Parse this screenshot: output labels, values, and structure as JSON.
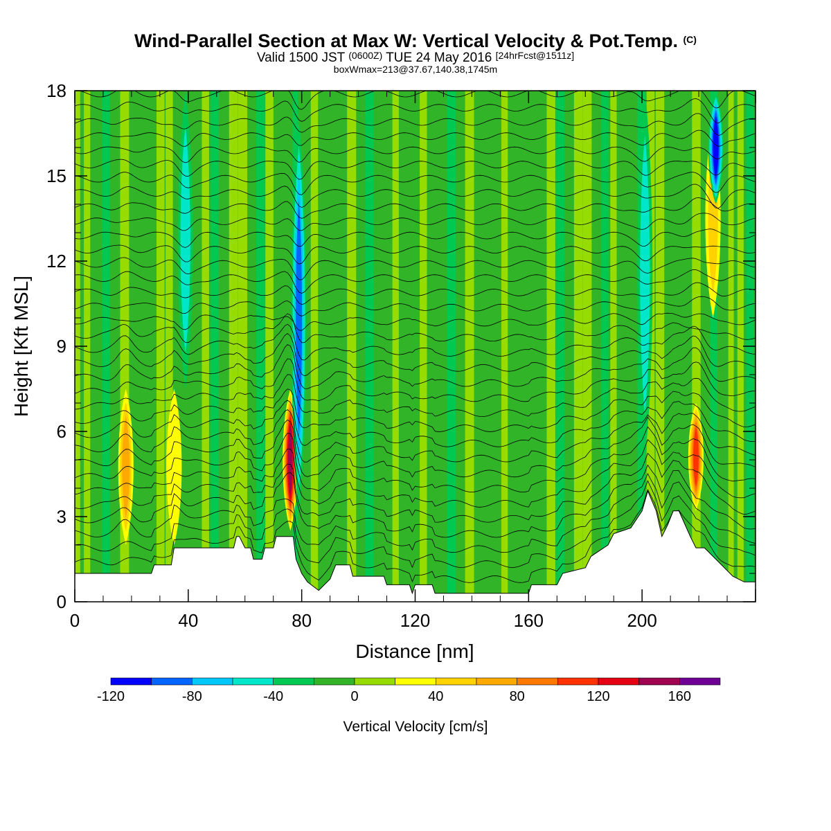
{
  "header": {
    "title": "Wind-Parallel Section at Max W: Vertical Velocity & Pot.Temp.",
    "title_mark": "(C)",
    "valid_prefix": "Valid 1500 JST",
    "valid_utc": "(0600Z)",
    "valid_date": "TUE 24 May 2016",
    "forecast": "[24hrFcst@1511z]",
    "box_info": "boxWmax=213@37.67,140.38,1745m"
  },
  "chart_data": {
    "type": "heatmap",
    "xlabel": "Distance [nm]",
    "ylabel": "Height [Kft MSL]",
    "xlim": [
      0,
      240
    ],
    "ylim": [
      0,
      18
    ],
    "x_ticks": [
      0,
      40,
      80,
      120,
      160,
      200
    ],
    "y_ticks": [
      0,
      3,
      6,
      9,
      12,
      15,
      18
    ],
    "colorbar": {
      "label": "Vertical Velocity [cm/s]",
      "range": [
        -120,
        180
      ],
      "step": 20,
      "tick_values": [
        -120,
        -80,
        -40,
        0,
        40,
        80,
        120,
        160
      ],
      "colors": [
        "#0000ff",
        "#0064ff",
        "#00c8ff",
        "#00e6c8",
        "#00c850",
        "#32b428",
        "#96dc00",
        "#ffff00",
        "#ffd200",
        "#ffaa00",
        "#ff7800",
        "#ff3200",
        "#e60014",
        "#a00050",
        "#6e0096"
      ]
    },
    "updraft_cores": [
      {
        "x": 18,
        "z0": 2.0,
        "z1": 7.5,
        "w": 70
      },
      {
        "x": 35,
        "z0": 2.0,
        "z1": 7.5,
        "w": 40
      },
      {
        "x": 76,
        "z0": 2.5,
        "z1": 7.5,
        "w": 160
      },
      {
        "x": 219,
        "z0": 3.2,
        "z1": 7.0,
        "w": 120
      },
      {
        "x": 225,
        "z0": 10.0,
        "z1": 17.0,
        "w": 50
      }
    ],
    "downdraft_cores": [
      {
        "x": 39,
        "z0": 7.5,
        "z1": 18,
        "w": -60
      },
      {
        "x": 79,
        "z0": 3.0,
        "z1": 17.0,
        "w": -100
      },
      {
        "x": 201,
        "z0": 5.0,
        "z1": 18,
        "w": -50
      },
      {
        "x": 226,
        "z0": 14.0,
        "z1": 18,
        "w": -120
      }
    ],
    "terrain": {
      "x": [
        0,
        27,
        28,
        34,
        35,
        56,
        57,
        58,
        60,
        62,
        63,
        66,
        67,
        70,
        71,
        77,
        78,
        80,
        82,
        86,
        90,
        92,
        97,
        98,
        109,
        110,
        118,
        119,
        120,
        126,
        127,
        160,
        161,
        170,
        172,
        180,
        182,
        188,
        190,
        196,
        200,
        202,
        205,
        207,
        209,
        211,
        213,
        217,
        219,
        222,
        225,
        229,
        232,
        236,
        240
      ],
      "z": [
        1.0,
        1.0,
        1.3,
        1.3,
        1.9,
        1.9,
        2.3,
        2.3,
        1.9,
        1.9,
        1.5,
        1.5,
        1.9,
        1.9,
        2.3,
        2.3,
        1.5,
        1.0,
        0.7,
        0.4,
        0.8,
        1.3,
        1.3,
        0.9,
        0.9,
        0.6,
        0.6,
        0.3,
        0.6,
        0.6,
        0.3,
        0.3,
        0.6,
        0.6,
        1.0,
        1.2,
        1.6,
        2.0,
        2.4,
        2.6,
        3.2,
        3.9,
        3.2,
        2.3,
        2.7,
        3.2,
        3.2,
        2.3,
        1.9,
        1.9,
        1.6,
        1.2,
        0.9,
        0.7,
        0.7
      ]
    }
  }
}
